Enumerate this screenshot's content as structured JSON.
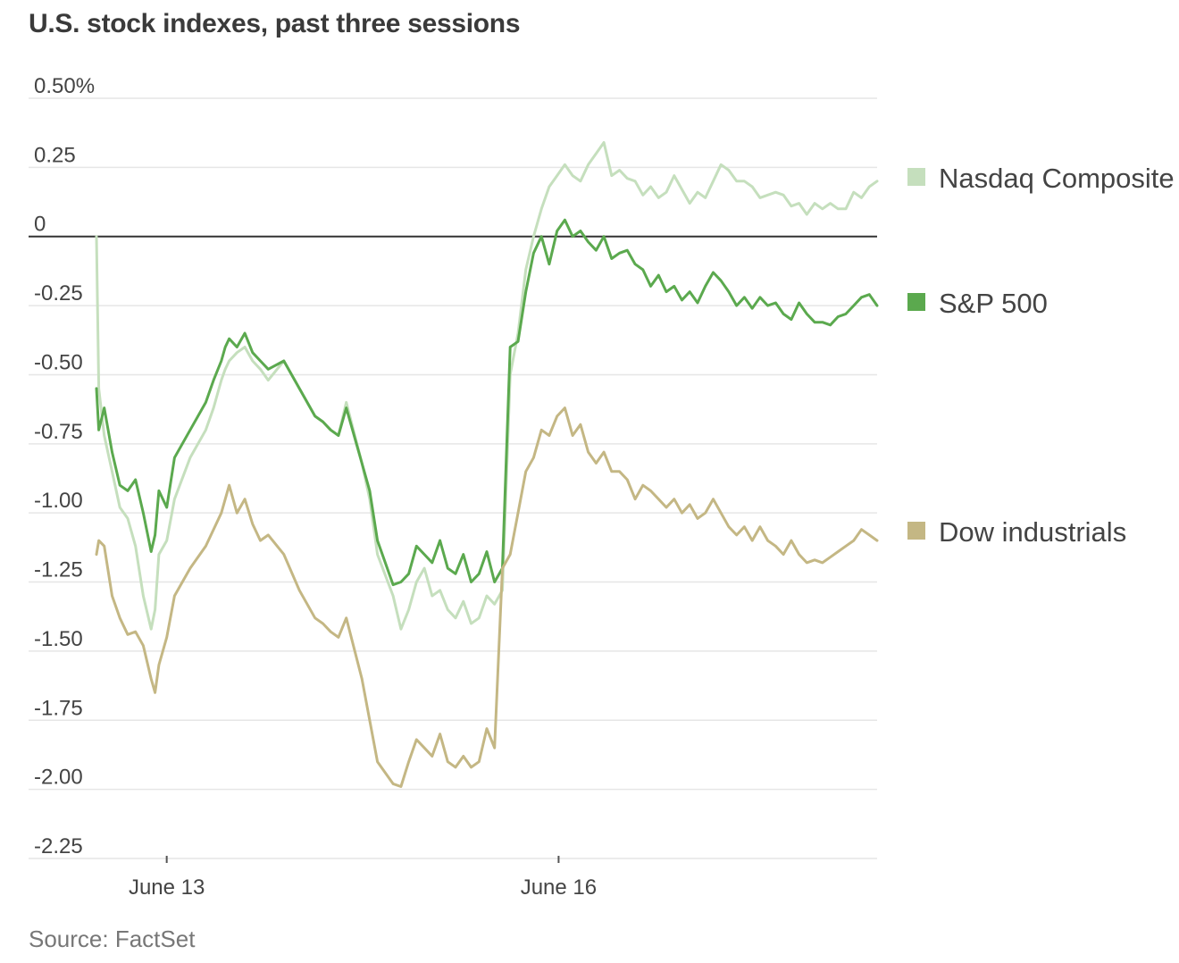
{
  "title": "U.S. stock indexes, past three sessions",
  "source": "Source: FactSet",
  "colors": {
    "nasdaq": "#c5dfbd",
    "sp500": "#5ba94e",
    "dow": "#c4b784",
    "grid": "#e6e6e6",
    "zero_line": "#333333"
  },
  "chart_data": {
    "type": "line",
    "title": "U.S. stock indexes, past three sessions",
    "xlabel": "",
    "ylabel": "",
    "ylim": [
      -2.25,
      0.5
    ],
    "xlim": [
      0,
      100
    ],
    "yticks": [
      0.5,
      0.25,
      0,
      -0.25,
      -0.5,
      -0.75,
      -1.0,
      -1.25,
      -1.5,
      -1.75,
      -2.0,
      -2.25
    ],
    "ytick_labels": [
      "0.50%",
      "0.25",
      "0",
      "-0.25",
      "-0.50",
      "-0.75",
      "-1.00",
      "-1.25",
      "-1.50",
      "-1.75",
      "-2.00",
      "-2.25"
    ],
    "xticks": [
      {
        "x": 9,
        "label": "June 13"
      },
      {
        "x": 59.2,
        "label": "June 16"
      }
    ],
    "legend_position": "right",
    "series": [
      {
        "name": "Nasdaq Composite",
        "color": "#c5dfbd",
        "x": [
          0,
          0.3,
          1,
          2,
          3,
          4,
          5,
          6,
          7,
          7.5,
          8,
          9,
          10,
          12,
          14,
          15,
          16,
          16.5,
          17,
          18,
          19,
          20,
          21,
          22,
          24,
          26,
          28,
          29,
          30,
          31,
          32,
          34,
          35,
          36,
          38,
          39,
          40,
          41,
          42,
          43,
          44,
          45,
          46,
          47,
          48,
          49,
          50,
          51,
          52,
          53,
          54,
          55,
          56,
          57,
          58,
          59,
          60,
          61,
          62,
          63,
          64,
          65,
          66,
          67,
          68,
          69,
          70,
          71,
          72,
          73,
          74,
          75,
          76,
          77,
          78,
          79,
          80,
          81,
          82,
          83,
          84,
          85,
          86,
          87,
          88,
          89,
          90,
          91,
          92,
          93,
          94,
          95,
          96,
          97,
          98,
          99,
          100
        ],
        "y": [
          0.0,
          -0.55,
          -0.72,
          -0.85,
          -0.98,
          -1.02,
          -1.12,
          -1.3,
          -1.42,
          -1.35,
          -1.15,
          -1.1,
          -0.95,
          -0.8,
          -0.7,
          -0.62,
          -0.52,
          -0.48,
          -0.45,
          -0.42,
          -0.4,
          -0.45,
          -0.48,
          -0.52,
          -0.45,
          -0.55,
          -0.65,
          -0.67,
          -0.7,
          -0.72,
          -0.6,
          -0.82,
          -0.95,
          -1.15,
          -1.3,
          -1.42,
          -1.35,
          -1.25,
          -1.2,
          -1.3,
          -1.28,
          -1.35,
          -1.38,
          -1.32,
          -1.4,
          -1.38,
          -1.3,
          -1.33,
          -1.28,
          -0.5,
          -0.35,
          -0.12,
          0.0,
          0.1,
          0.18,
          0.22,
          0.26,
          0.22,
          0.2,
          0.26,
          0.3,
          0.34,
          0.22,
          0.24,
          0.21,
          0.2,
          0.15,
          0.18,
          0.14,
          0.16,
          0.22,
          0.17,
          0.12,
          0.16,
          0.14,
          0.2,
          0.26,
          0.24,
          0.2,
          0.2,
          0.18,
          0.14,
          0.15,
          0.16,
          0.15,
          0.11,
          0.12,
          0.08,
          0.12,
          0.1,
          0.12,
          0.1,
          0.1,
          0.16,
          0.14,
          0.18,
          0.2
        ]
      },
      {
        "name": "S&P 500",
        "color": "#5ba94e",
        "x": [
          0,
          0.3,
          1,
          2,
          3,
          4,
          5,
          6,
          7,
          7.5,
          8,
          9,
          10,
          12,
          14,
          15,
          16,
          16.5,
          17,
          18,
          19,
          20,
          21,
          22,
          24,
          26,
          28,
          29,
          30,
          31,
          32,
          34,
          35,
          36,
          38,
          39,
          40,
          41,
          42,
          43,
          44,
          45,
          46,
          47,
          48,
          49,
          50,
          51,
          52,
          53,
          54,
          55,
          56,
          57,
          58,
          59,
          60,
          61,
          62,
          63,
          64,
          65,
          66,
          67,
          68,
          69,
          70,
          71,
          72,
          73,
          74,
          75,
          76,
          77,
          78,
          79,
          80,
          81,
          82,
          83,
          84,
          85,
          86,
          87,
          88,
          89,
          90,
          91,
          92,
          93,
          94,
          95,
          96,
          97,
          98,
          99,
          100
        ],
        "y": [
          -0.55,
          -0.7,
          -0.62,
          -0.78,
          -0.9,
          -0.92,
          -0.88,
          -1.0,
          -1.14,
          -1.08,
          -0.92,
          -0.98,
          -0.8,
          -0.7,
          -0.6,
          -0.52,
          -0.45,
          -0.4,
          -0.37,
          -0.4,
          -0.35,
          -0.42,
          -0.45,
          -0.48,
          -0.45,
          -0.55,
          -0.65,
          -0.67,
          -0.7,
          -0.72,
          -0.62,
          -0.82,
          -0.92,
          -1.1,
          -1.26,
          -1.25,
          -1.22,
          -1.12,
          -1.15,
          -1.18,
          -1.1,
          -1.2,
          -1.22,
          -1.15,
          -1.25,
          -1.22,
          -1.14,
          -1.25,
          -1.2,
          -0.4,
          -0.38,
          -0.2,
          -0.06,
          0.0,
          -0.1,
          0.02,
          0.06,
          0.0,
          0.02,
          -0.02,
          -0.05,
          0.0,
          -0.08,
          -0.06,
          -0.05,
          -0.1,
          -0.12,
          -0.18,
          -0.14,
          -0.2,
          -0.18,
          -0.23,
          -0.2,
          -0.24,
          -0.18,
          -0.13,
          -0.16,
          -0.2,
          -0.25,
          -0.22,
          -0.26,
          -0.22,
          -0.25,
          -0.24,
          -0.28,
          -0.3,
          -0.24,
          -0.28,
          -0.31,
          -0.31,
          -0.32,
          -0.29,
          -0.28,
          -0.25,
          -0.22,
          -0.21,
          -0.25
        ]
      },
      {
        "name": "Dow industrials",
        "color": "#c4b784",
        "x": [
          0,
          0.3,
          1,
          2,
          3,
          4,
          5,
          6,
          7,
          7.5,
          8,
          9,
          10,
          12,
          14,
          15,
          16,
          16.5,
          17,
          18,
          19,
          20,
          21,
          22,
          24,
          26,
          28,
          29,
          30,
          31,
          32,
          34,
          35,
          36,
          38,
          39,
          40,
          41,
          42,
          43,
          44,
          45,
          46,
          47,
          48,
          49,
          50,
          51,
          52,
          53,
          54,
          55,
          56,
          57,
          58,
          59,
          60,
          61,
          62,
          63,
          64,
          65,
          66,
          67,
          68,
          69,
          70,
          71,
          72,
          73,
          74,
          75,
          76,
          77,
          78,
          79,
          80,
          81,
          82,
          83,
          84,
          85,
          86,
          87,
          88,
          89,
          90,
          91,
          92,
          93,
          94,
          95,
          96,
          97,
          98,
          99,
          100
        ],
        "y": [
          -1.15,
          -1.1,
          -1.12,
          -1.3,
          -1.38,
          -1.44,
          -1.43,
          -1.48,
          -1.6,
          -1.65,
          -1.55,
          -1.45,
          -1.3,
          -1.2,
          -1.12,
          -1.06,
          -1.0,
          -0.95,
          -0.9,
          -1.0,
          -0.95,
          -1.04,
          -1.1,
          -1.08,
          -1.15,
          -1.28,
          -1.38,
          -1.4,
          -1.43,
          -1.45,
          -1.38,
          -1.6,
          -1.75,
          -1.9,
          -1.98,
          -1.99,
          -1.9,
          -1.82,
          -1.85,
          -1.88,
          -1.8,
          -1.9,
          -1.92,
          -1.88,
          -1.92,
          -1.9,
          -1.78,
          -1.85,
          -1.2,
          -1.15,
          -1.0,
          -0.85,
          -0.8,
          -0.7,
          -0.72,
          -0.65,
          -0.62,
          -0.72,
          -0.68,
          -0.78,
          -0.82,
          -0.78,
          -0.85,
          -0.85,
          -0.88,
          -0.95,
          -0.9,
          -0.92,
          -0.95,
          -0.98,
          -0.95,
          -1.0,
          -0.97,
          -1.02,
          -1.0,
          -0.95,
          -1.0,
          -1.05,
          -1.08,
          -1.05,
          -1.1,
          -1.05,
          -1.1,
          -1.12,
          -1.15,
          -1.1,
          -1.15,
          -1.18,
          -1.17,
          -1.18,
          -1.16,
          -1.14,
          -1.12,
          -1.1,
          -1.06,
          -1.08,
          -1.1
        ]
      }
    ]
  }
}
